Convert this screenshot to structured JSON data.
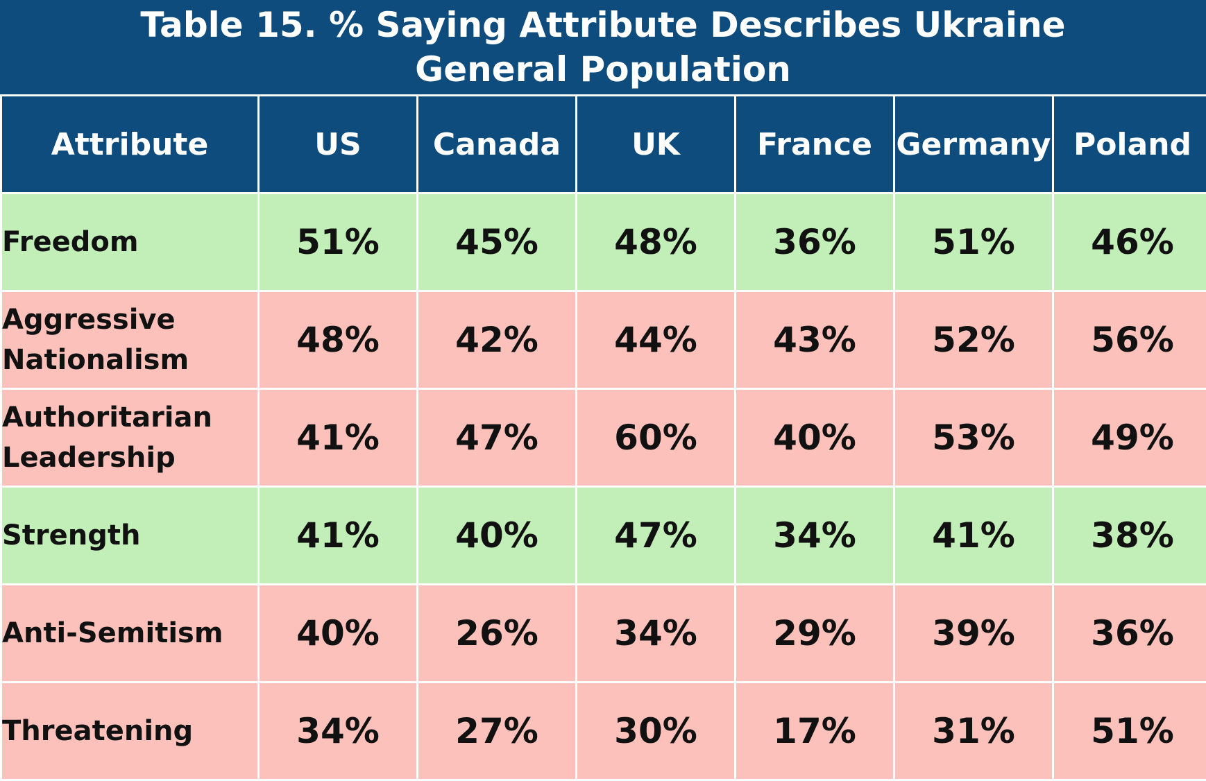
{
  "title": {
    "line1": "Table 15. % Saying Attribute Describes Ukraine",
    "line2": "General Population"
  },
  "colors": {
    "header_bg": "#0d4c7d",
    "positive_row": "#c2efb8",
    "negative_row": "#fbc1ba"
  },
  "chart_data": {
    "type": "table",
    "title": "Table 15. % Saying Attribute Describes Ukraine General Population",
    "columns": [
      "Attribute",
      "US",
      "Canada",
      "UK",
      "France",
      "Germany",
      "Poland"
    ],
    "rows": [
      {
        "attribute": "Freedom",
        "tone": "positive",
        "values": [
          "51%",
          "45%",
          "48%",
          "36%",
          "51%",
          "46%"
        ]
      },
      {
        "attribute": "Aggressive Nationalism",
        "tone": "negative",
        "values": [
          "48%",
          "42%",
          "44%",
          "43%",
          "52%",
          "56%"
        ]
      },
      {
        "attribute": "Authoritarian Leadership",
        "tone": "negative",
        "values": [
          "41%",
          "47%",
          "60%",
          "40%",
          "53%",
          "49%"
        ]
      },
      {
        "attribute": "Strength",
        "tone": "positive",
        "values": [
          "41%",
          "40%",
          "47%",
          "34%",
          "41%",
          "38%"
        ]
      },
      {
        "attribute": "Anti-Semitism",
        "tone": "negative",
        "values": [
          "40%",
          "26%",
          "34%",
          "29%",
          "39%",
          "36%"
        ]
      },
      {
        "attribute": "Threatening",
        "tone": "negative",
        "values": [
          "34%",
          "27%",
          "30%",
          "17%",
          "31%",
          "51%"
        ]
      }
    ]
  }
}
